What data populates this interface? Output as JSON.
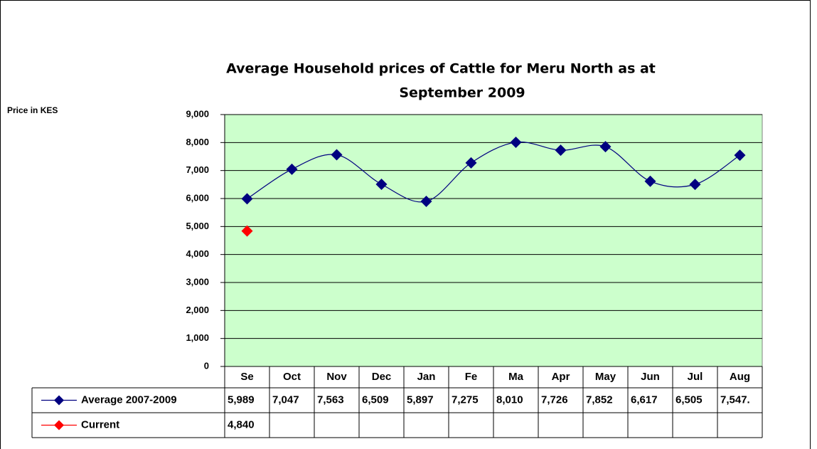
{
  "chart_data": {
    "type": "line",
    "title": [
      "Average Household prices of Cattle for Meru North as at",
      "September 2009"
    ],
    "y_label": "Price in KES",
    "categories": [
      "Se",
      "Oct",
      "Nov",
      "Dec",
      "Jan",
      "Fe",
      "Ma",
      "Apr",
      "May",
      "Jun",
      "Jul",
      "Aug"
    ],
    "series": [
      {
        "name": "Average 2007-2009",
        "color": "#000080",
        "smooth": true,
        "values": [
          5989,
          7047,
          7563,
          6509,
          5897,
          7275,
          8010,
          7726,
          7852,
          6617,
          6505,
          7547
        ],
        "value_labels": [
          "5,989",
          "7,047",
          "7,563",
          "6,509",
          "5,897",
          "7,275",
          "8,010",
          "7,726",
          "7,852",
          "6,617",
          "6,505",
          "7,547."
        ]
      },
      {
        "name": "Current",
        "color": "#ff0000",
        "smooth": true,
        "values": [
          4840,
          null,
          null,
          null,
          null,
          null,
          null,
          null,
          null,
          null,
          null,
          null
        ],
        "value_labels": [
          "4,840",
          null,
          null,
          null,
          null,
          null,
          null,
          null,
          null,
          null,
          null,
          null
        ]
      }
    ],
    "ylim": [
      0,
      9000
    ],
    "yticks": [
      0,
      {
        "value": 1000,
        "label": "1,000"
      },
      {
        "value": 2000,
        "label": "2,000"
      },
      {
        "value": 3000,
        "label": "3,000"
      },
      {
        "value": 4000,
        "label": "4,000"
      },
      {
        "value": 5000,
        "label": "5,000"
      },
      {
        "value": 6000,
        "label": "6,000"
      },
      {
        "value": 7000,
        "label": "7,000"
      },
      {
        "value": 8000,
        "label": "8,000"
      },
      {
        "value": 9000,
        "label": "9,000"
      }
    ],
    "grid": true,
    "plot_background": "#ccffcc"
  }
}
